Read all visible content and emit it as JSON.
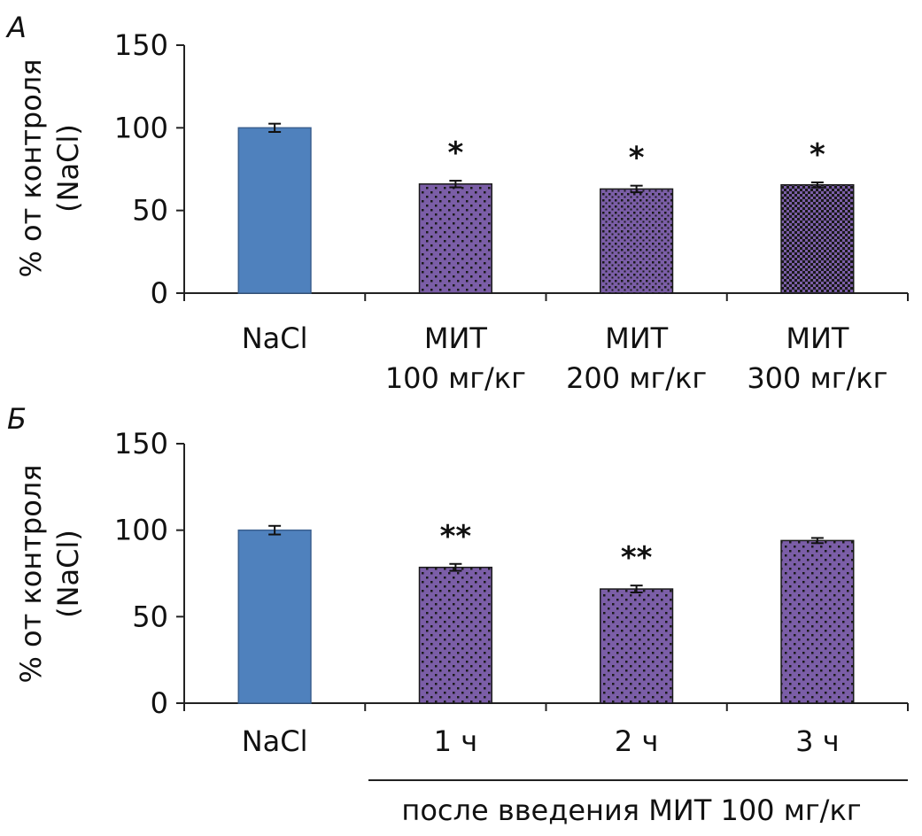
{
  "chart_data": [
    {
      "type": "bar",
      "panel_label": "А",
      "ylabel_line1": "% от контроля",
      "ylabel_line2": "(NaCl)",
      "ylim": [
        0,
        150
      ],
      "yticks": [
        0,
        50,
        100,
        150
      ],
      "categories": [
        {
          "line1": "NaCl",
          "line2": ""
        },
        {
          "line1": "МИТ",
          "line2": "100 мг/кг"
        },
        {
          "line1": "МИТ",
          "line2": "200 мг/кг"
        },
        {
          "line1": "МИТ",
          "line2": "300 мг/кг"
        }
      ],
      "values": [
        100,
        66,
        63,
        65.5
      ],
      "errors": [
        2.5,
        2,
        2,
        1.5
      ],
      "significance": [
        "",
        "*",
        "*",
        "*"
      ],
      "fills": [
        "solid",
        "dots-sparse",
        "dots-medium",
        "checker"
      ],
      "colors": {
        "control": "#4f81bd",
        "treatment": "#7b5ea7",
        "pattern": "#1a1a1a"
      },
      "grid": false
    },
    {
      "type": "bar",
      "panel_label": "Б",
      "ylabel_line1": "% от контроля",
      "ylabel_line2": "(NaCl)",
      "ylim": [
        0,
        150
      ],
      "yticks": [
        0,
        50,
        100,
        150
      ],
      "categories": [
        {
          "line1": "NaCl",
          "line2": ""
        },
        {
          "line1": "1 ч",
          "line2": ""
        },
        {
          "line1": "2 ч",
          "line2": ""
        },
        {
          "line1": "3 ч",
          "line2": ""
        }
      ],
      "values": [
        100,
        78.5,
        66,
        94
      ],
      "errors": [
        2.5,
        2,
        2,
        1.5
      ],
      "significance": [
        "",
        "**",
        "**",
        ""
      ],
      "fills": [
        "solid",
        "dots-sparse",
        "dots-sparse",
        "dots-sparse"
      ],
      "colors": {
        "control": "#4f81bd",
        "treatment": "#7b5ea7",
        "pattern": "#1a1a1a"
      },
      "group_label": "после введения МИТ 100 мг/кг",
      "grid": false
    }
  ]
}
